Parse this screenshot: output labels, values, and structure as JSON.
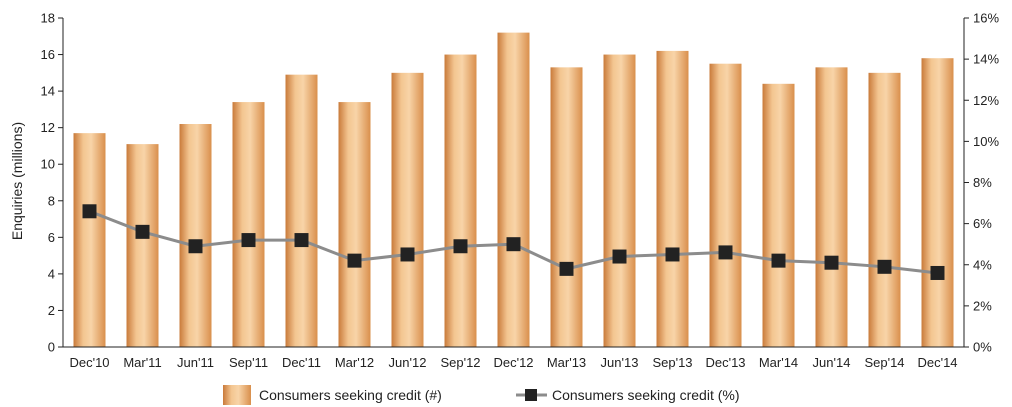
{
  "chart_data": {
    "type": "bar",
    "categories": [
      "Dec'10",
      "Mar'11",
      "Jun'11",
      "Sep'11",
      "Dec'11",
      "Mar'12",
      "Jun'12",
      "Sep'12",
      "Dec'12",
      "Mar'13",
      "Jun'13",
      "Sep'13",
      "Dec'13",
      "Mar'14",
      "Jun'14",
      "Sep'14",
      "Dec'14"
    ],
    "series": [
      {
        "name": "Consumers seeking credit (#)",
        "type": "bar",
        "axis": "left",
        "values": [
          11.7,
          11.1,
          12.2,
          13.4,
          14.9,
          13.4,
          15.0,
          16.0,
          17.2,
          15.3,
          16.0,
          16.2,
          15.5,
          14.4,
          15.3,
          15.0,
          15.8
        ],
        "color": "#e3a25f"
      },
      {
        "name": "Consumers seeking credit (%)",
        "type": "line",
        "axis": "right",
        "values": [
          6.6,
          5.6,
          4.9,
          5.2,
          5.2,
          4.2,
          4.5,
          4.9,
          5.0,
          3.8,
          4.4,
          4.5,
          4.6,
          4.2,
          4.1,
          3.9,
          3.6
        ],
        "color": "#8c8c8c",
        "marker_color": "#222222"
      }
    ],
    "ylabel": "Enquiries (millions)",
    "ylim": [
      0,
      18
    ],
    "yticks": [
      "0",
      "2",
      "4",
      "6",
      "8",
      "10",
      "12",
      "14",
      "16",
      "18"
    ],
    "y2lim": [
      0,
      16
    ],
    "y2ticks": [
      "0%",
      "2%",
      "4%",
      "6%",
      "8%",
      "10%",
      "12%",
      "14%",
      "16%"
    ],
    "legend_position": "bottom-center",
    "grid": false
  }
}
